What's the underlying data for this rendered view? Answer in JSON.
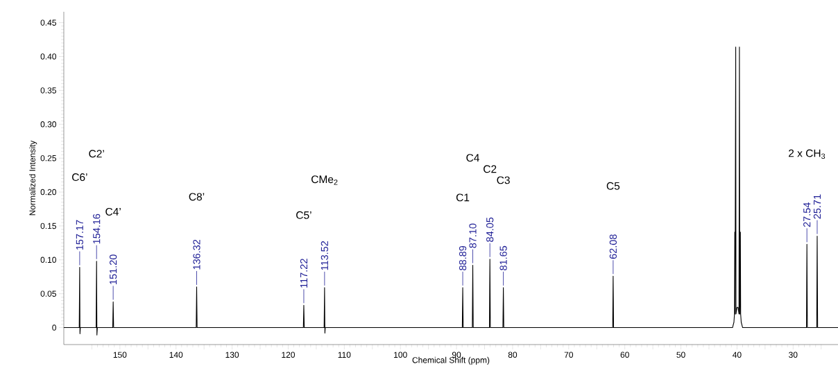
{
  "chart_data": {
    "type": "line",
    "xlabel": "Chemical Shift (ppm)",
    "ylabel": "Normalized Intensity",
    "xlim": [
      160,
      22
    ],
    "ylim": [
      -0.025,
      0.466
    ],
    "xticks": [
      {
        "value": 155,
        "label": null
      },
      150,
      {
        "value": 145,
        "label": null
      },
      140,
      {
        "value": 135,
        "label": null
      },
      130,
      {
        "value": 125,
        "label": null
      },
      120,
      {
        "value": 115,
        "label": null
      },
      110,
      {
        "value": 105,
        "label": null
      },
      100,
      {
        "value": 95,
        "label": null
      },
      90,
      {
        "value": 85,
        "label": null
      },
      80,
      {
        "value": 75,
        "label": null
      },
      70,
      {
        "value": 65,
        "label": null
      },
      60,
      {
        "value": 55,
        "label": null
      },
      50,
      {
        "value": 45,
        "label": null
      },
      40,
      {
        "value": 35,
        "label": null
      },
      30,
      {
        "value": 25,
        "label": null
      }
    ],
    "yticks": [
      0,
      {
        "value": 0.05,
        "label": "0.05"
      },
      {
        "value": 0.1,
        "label": "0.10"
      },
      {
        "value": 0.15,
        "label": "0.15"
      },
      {
        "value": 0.2,
        "label": "0.20"
      },
      {
        "value": 0.25,
        "label": "0.25"
      },
      {
        "value": 0.3,
        "label": "0.30"
      },
      {
        "value": 0.35,
        "label": "0.35"
      },
      {
        "value": 0.4,
        "label": "0.40"
      },
      {
        "value": 0.45,
        "label": "0.45"
      }
    ],
    "grid": false,
    "marker": "none",
    "line_style": "solid",
    "series": [
      {
        "color": "#000000",
        "x": [
          160,
          157.25,
          157.17,
          157.12,
          157.05,
          154.24,
          154.16,
          154.1,
          154.02,
          151.28,
          151.2,
          151.12,
          136.4,
          136.32,
          136.24,
          117.3,
          117.22,
          117.14,
          113.6,
          113.52,
          113.46,
          113.4,
          88.97,
          88.89,
          88.81,
          87.18,
          87.1,
          87.02,
          84.13,
          84.05,
          83.97,
          81.73,
          81.65,
          81.57,
          62.16,
          62.08,
          62.0,
          40.8,
          40.55,
          40.45,
          40.4,
          40.36,
          40.23,
          40.18,
          40.07,
          40.0,
          39.9,
          39.82,
          39.74,
          39.65,
          39.57,
          39.5,
          39.4,
          39.35,
          39.25,
          39.0,
          27.62,
          27.54,
          27.46,
          25.79,
          25.71,
          25.63,
          22
        ],
        "values": [
          0,
          0,
          0.089,
          -0.009,
          0,
          0,
          0.098,
          -0.011,
          0,
          0,
          0.038,
          0,
          0,
          0.06,
          0,
          0,
          0.033,
          0,
          0,
          0.059,
          -0.008,
          0,
          0,
          0.059,
          0,
          0,
          0.092,
          0,
          0,
          0.101,
          0,
          0,
          0.059,
          0,
          0,
          0.076,
          0,
          0,
          0.008,
          0.02,
          0.141,
          0.02,
          0.414,
          0.02,
          null,
          0.03,
          null,
          0.03,
          null,
          0.02,
          0.414,
          0.02,
          0.141,
          0.02,
          0.008,
          0,
          0,
          0.123,
          0,
          0,
          0.135,
          0,
          0
        ]
      }
    ],
    "annotations": [
      {
        "text": "157.17",
        "x": 157.17,
        "y": 0.089
      },
      {
        "text": "154.16",
        "x": 154.16,
        "y": 0.098
      },
      {
        "text": "151.20",
        "x": 151.2,
        "y": 0.038
      },
      {
        "text": "136.32",
        "x": 136.32,
        "y": 0.06
      },
      {
        "text": "117.22",
        "x": 117.22,
        "y": 0.033
      },
      {
        "text": "113.52",
        "x": 113.52,
        "y": 0.059
      },
      {
        "text": "88.89",
        "x": 88.89,
        "y": 0.059
      },
      {
        "text": "87.10",
        "x": 87.1,
        "y": 0.092
      },
      {
        "text": "84.05",
        "x": 84.05,
        "y": 0.101
      },
      {
        "text": "81.65",
        "x": 81.65,
        "y": 0.059
      },
      {
        "text": "62.08",
        "x": 62.08,
        "y": 0.076
      },
      {
        "text": "27.54",
        "x": 27.54,
        "y": 0.123
      },
      {
        "text": "25.71",
        "x": 25.71,
        "y": 0.135
      },
      "C6’",
      "C2’",
      "C4’",
      "C8’",
      "C5’",
      "CMe$_{2}$",
      "C1",
      "C4",
      "C2",
      "C3",
      "C5",
      "2 x CH$_{3}$"
    ]
  }
}
